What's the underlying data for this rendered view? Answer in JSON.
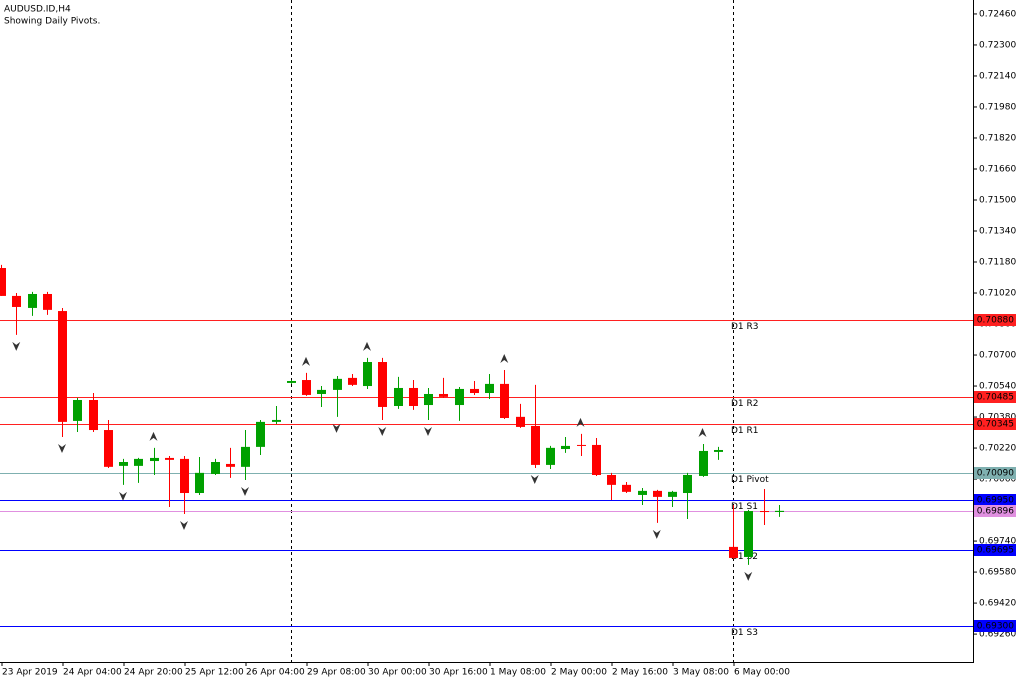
{
  "chart_data": {
    "type": "candlestick",
    "title": "AUDUSD.ID,H4",
    "subtitle": "Showing Daily Pivots.",
    "categories": [
      "23 Apr 2019",
      null,
      null,
      null,
      "24 Apr 04:00",
      null,
      null,
      null,
      "24 Apr 20:00",
      null,
      null,
      null,
      "25 Apr 12:00",
      null,
      null,
      null,
      "26 Apr 04:00",
      null,
      null,
      null,
      "29 Apr 08:00",
      null,
      null,
      null,
      "30 Apr 00:00",
      null,
      null,
      null,
      "30 Apr 16:00",
      null,
      null,
      null,
      "1 May 08:00",
      null,
      null,
      null,
      "2 May 00:00",
      null,
      null,
      null,
      "2 May 16:00",
      null,
      null,
      null,
      "3 May 08:00",
      null,
      null,
      null,
      "6 May 00:00",
      null,
      null,
      null
    ],
    "open": [
      0.71149,
      0.71005,
      0.70943,
      0.71015,
      0.70927,
      0.7036,
      0.70468,
      0.70313,
      0.70128,
      0.70128,
      0.70153,
      0.70169,
      0.70164,
      0.69988,
      0.70086,
      0.70138,
      0.70123,
      0.70226,
      0.70355,
      0.70556,
      0.70571,
      0.70499,
      0.7052,
      0.70582,
      0.7054,
      0.70664,
      0.70437,
      0.7053,
      0.70442,
      0.70499,
      0.70442,
      0.70525,
      0.70504,
      0.70551,
      0.70381,
      0.70334,
      0.70133,
      0.70215,
      0.70236,
      0.70236,
      0.70081,
      0.7003,
      0.69978,
      0.69999,
      0.69968,
      0.69988,
      0.70076,
      0.702,
      0.6971,
      0.69658,
      0.69895,
      0.6989
    ],
    "high": [
      0.71165,
      0.7102,
      0.71026,
      0.71026,
      0.70943,
      0.70479,
      0.70504,
      0.70365,
      0.70164,
      0.70169,
      0.70221,
      0.70179,
      0.70179,
      0.70174,
      0.70164,
      0.70221,
      0.70313,
      0.70365,
      0.70437,
      0.70571,
      0.70608,
      0.7054,
      0.70592,
      0.70602,
      0.70685,
      0.70685,
      0.70587,
      0.70571,
      0.7053,
      0.70582,
      0.70535,
      0.70566,
      0.70602,
      0.70623,
      0.70448,
      0.70546,
      0.70231,
      0.70277,
      0.70293,
      0.70272,
      0.70092,
      0.70045,
      0.70014,
      0.70004,
      0.69999,
      0.70092,
      0.70241,
      0.70226,
      0.69926,
      0.69901,
      0.70009,
      0.69926
    ],
    "low": [
      0.71005,
      0.70804,
      0.70902,
      0.70907,
      0.70277,
      0.70303,
      0.70303,
      0.70117,
      0.7003,
      0.7004,
      0.70081,
      0.69916,
      0.6988,
      0.69978,
      0.70081,
      0.70066,
      0.70055,
      0.70184,
      0.70344,
      0.70551,
      0.70489,
      0.70432,
      0.70381,
      0.7054,
      0.70525,
      0.70365,
      0.70422,
      0.70417,
      0.70365,
      0.70479,
      0.7036,
      0.70494,
      0.70473,
      0.7037,
      0.70324,
      0.70117,
      0.70112,
      0.70195,
      0.70179,
      0.70076,
      0.69952,
      0.69988,
      0.69926,
      0.69834,
      0.69916,
      0.69854,
      0.70071,
      0.70159,
      0.69648,
      0.69617,
      0.69823,
      0.69865
    ],
    "close": [
      0.71005,
      0.70948,
      0.71015,
      0.70933,
      0.70355,
      0.70468,
      0.70313,
      0.70123,
      0.70148,
      0.70164,
      0.70169,
      0.70159,
      0.69988,
      0.70092,
      0.70148,
      0.70123,
      0.70226,
      0.70355,
      0.70365,
      0.70566,
      0.70494,
      0.7052,
      0.70577,
      0.70546,
      0.70664,
      0.70432,
      0.7053,
      0.70437,
      0.70499,
      0.70484,
      0.70525,
      0.70504,
      0.70551,
      0.70375,
      0.70329,
      0.70133,
      0.70221,
      0.70231,
      0.70231,
      0.70081,
      0.7003,
      0.69994,
      0.69999,
      0.69968,
      0.69994,
      0.70081,
      0.70205,
      0.7021,
      0.69653,
      0.69895,
      0.6989,
      0.69896
    ],
    "up_color": "#00a000",
    "down_color": "#ff0000",
    "fractals_up": [
      10,
      20,
      24,
      33,
      38,
      46
    ],
    "fractals_down": [
      1,
      4,
      8,
      12,
      16,
      22,
      25,
      28,
      35,
      43,
      49
    ],
    "separators": [
      19,
      48
    ],
    "levels": [
      {
        "name": "D1 R3",
        "value": 0.7088,
        "label": "0.70880",
        "color": "#ff2020"
      },
      {
        "name": "D1 R2",
        "value": 0.70485,
        "label": "0.70485",
        "color": "#ff2020"
      },
      {
        "name": "D1 R1",
        "value": 0.70345,
        "label": "0.70345",
        "color": "#ff2020"
      },
      {
        "name": "D1 Pivot",
        "value": 0.7009,
        "label": "0.70090",
        "color": "#7fb0b0"
      },
      {
        "name": "D1 S1",
        "value": 0.6995,
        "label": "0.69950",
        "color": "#0000ff"
      },
      {
        "value": 0.69896,
        "label": "0.69896",
        "color": "#e090e0"
      },
      {
        "name": "D1 S2",
        "value": 0.69695,
        "label": "0.69695",
        "color": "#0000ff"
      },
      {
        "name": "D1 S3",
        "value": 0.693,
        "label": "0.69300",
        "color": "#0000ff"
      }
    ],
    "ylim": [
      0.69116,
      0.72532
    ],
    "yticks": [
      {
        "value": 0.7246,
        "label": "0.72460"
      },
      {
        "value": 0.723,
        "label": "0.72300"
      },
      {
        "value": 0.7214,
        "label": "0.72140"
      },
      {
        "value": 0.7198,
        "label": "0.71980"
      },
      {
        "value": 0.7182,
        "label": "0.71820"
      },
      {
        "value": 0.7166,
        "label": "0.71660"
      },
      {
        "value": 0.715,
        "label": "0.71500"
      },
      {
        "value": 0.7134,
        "label": "0.71340"
      },
      {
        "value": 0.7118,
        "label": "0.71180"
      },
      {
        "value": 0.7102,
        "label": "0.71020"
      },
      {
        "value": 0.7086,
        "label": "0.70860"
      },
      {
        "value": 0.707,
        "label": "0.70700"
      },
      {
        "value": 0.7054,
        "label": "0.70540"
      },
      {
        "value": 0.7038,
        "label": "0.70380"
      },
      {
        "value": 0.7022,
        "label": "0.70220"
      },
      {
        "value": 0.7006,
        "label": "0.70060"
      },
      {
        "value": 0.699,
        "label": "0.69900"
      },
      {
        "value": 0.6974,
        "label": "0.69740"
      },
      {
        "value": 0.6958,
        "label": "0.69580"
      },
      {
        "value": 0.6942,
        "label": "0.69420"
      },
      {
        "value": 0.6926,
        "label": "0.69260"
      }
    ]
  }
}
